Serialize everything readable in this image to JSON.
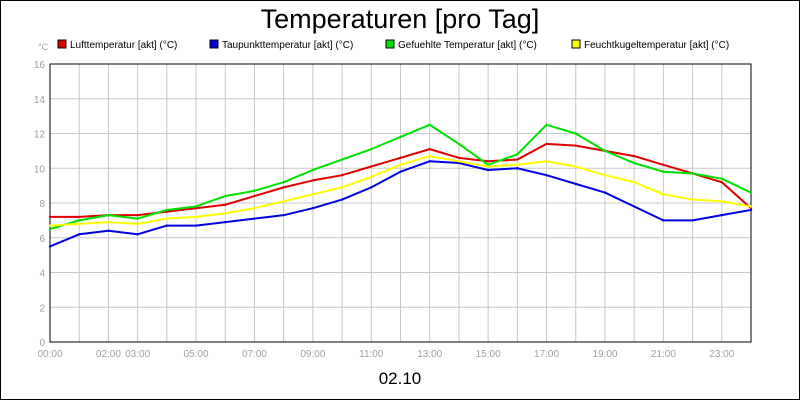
{
  "chart_data": {
    "type": "line",
    "title": "Temperaturen [pro Tag]",
    "unit_label": "°C",
    "date_label": "02.10",
    "ylim": [
      0,
      16
    ],
    "y_ticks": [
      0,
      2,
      4,
      6,
      8,
      10,
      12,
      14,
      16
    ],
    "xlim": [
      0,
      24
    ],
    "x_ticks": [
      {
        "x": 0,
        "label": "00:00"
      },
      {
        "x": 2,
        "label": "02:00"
      },
      {
        "x": 3,
        "label": "03:00"
      },
      {
        "x": 5,
        "label": "05:00"
      },
      {
        "x": 7,
        "label": "07:00"
      },
      {
        "x": 9,
        "label": "09:00"
      },
      {
        "x": 11,
        "label": "11:00"
      },
      {
        "x": 13,
        "label": "13:00"
      },
      {
        "x": 15,
        "label": "15:00"
      },
      {
        "x": 17,
        "label": "17:00"
      },
      {
        "x": 19,
        "label": "19:00"
      },
      {
        "x": 21,
        "label": "21:00"
      },
      {
        "x": 23,
        "label": "23:00"
      }
    ],
    "grid": true,
    "legend_position": "top",
    "series": [
      {
        "name": "Lufttemperatur [akt] (°C)",
        "color": "#e00000",
        "x": [
          0,
          1,
          2,
          3,
          4,
          5,
          6,
          7,
          8,
          9,
          10,
          11,
          12,
          13,
          14,
          15,
          16,
          17,
          18,
          19,
          20,
          21,
          22,
          23,
          24
        ],
        "values": [
          7.2,
          7.2,
          7.3,
          7.3,
          7.5,
          7.7,
          7.9,
          8.4,
          8.9,
          9.3,
          9.6,
          10.1,
          10.6,
          11.1,
          10.6,
          10.4,
          10.5,
          11.4,
          11.3,
          11.0,
          10.7,
          10.2,
          9.7,
          9.2,
          7.7
        ]
      },
      {
        "name": "Taupunkttemperatur [akt] (°C)",
        "color": "#0000e0",
        "x": [
          0,
          1,
          2,
          3,
          4,
          5,
          6,
          7,
          8,
          9,
          10,
          11,
          12,
          13,
          14,
          15,
          16,
          17,
          18,
          19,
          20,
          21,
          22,
          23,
          24
        ],
        "values": [
          5.5,
          6.2,
          6.4,
          6.2,
          6.7,
          6.7,
          6.9,
          7.1,
          7.3,
          7.7,
          8.2,
          8.9,
          9.8,
          10.4,
          10.3,
          9.9,
          10.0,
          9.6,
          9.1,
          8.6,
          7.8,
          7.0,
          7.0,
          7.3,
          7.6
        ]
      },
      {
        "name": "Gefuehlte Temperatur [akt] (°C)",
        "color": "#00e000",
        "x": [
          0,
          1,
          2,
          3,
          4,
          5,
          6,
          7,
          8,
          9,
          10,
          11,
          12,
          13,
          14,
          15,
          16,
          17,
          18,
          19,
          20,
          21,
          22,
          23,
          24
        ],
        "values": [
          6.5,
          7.0,
          7.3,
          7.1,
          7.6,
          7.8,
          8.4,
          8.7,
          9.2,
          9.9,
          10.5,
          11.1,
          11.8,
          12.5,
          11.4,
          10.2,
          10.8,
          12.5,
          12.0,
          11.0,
          10.3,
          9.8,
          9.7,
          9.4,
          8.6
        ]
      },
      {
        "name": "Feuchtkugeltemperatur [akt] (°C)",
        "color": "#ffff00",
        "x": [
          0,
          1,
          2,
          3,
          4,
          5,
          6,
          7,
          8,
          9,
          10,
          11,
          12,
          13,
          14,
          15,
          16,
          17,
          18,
          19,
          20,
          21,
          22,
          23,
          24
        ],
        "values": [
          6.7,
          6.8,
          6.9,
          6.8,
          7.1,
          7.2,
          7.4,
          7.7,
          8.1,
          8.5,
          8.9,
          9.5,
          10.2,
          10.7,
          10.4,
          10.1,
          10.2,
          10.4,
          10.1,
          9.6,
          9.2,
          8.5,
          8.2,
          8.1,
          7.8
        ]
      }
    ]
  }
}
